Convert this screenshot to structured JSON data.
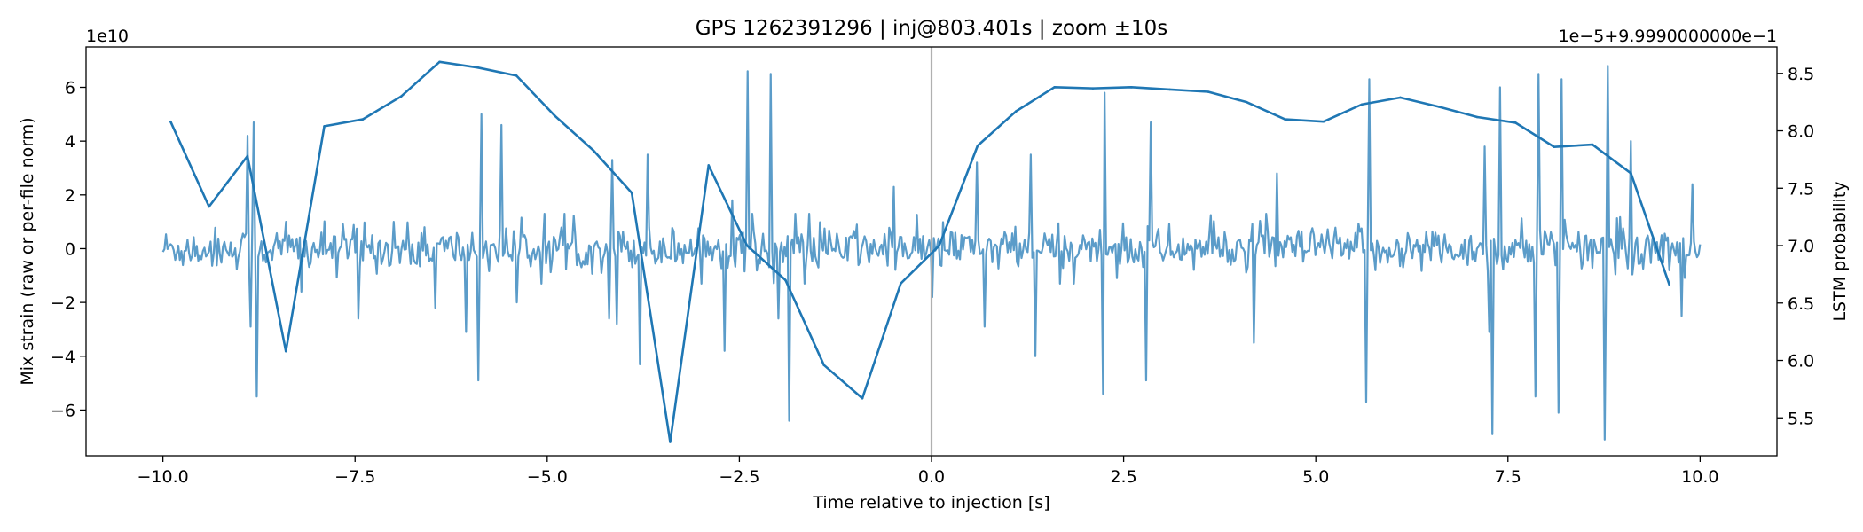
{
  "chart_data": {
    "type": "line",
    "title": "GPS 1262391296 | inj@803.401s | zoom ±10s",
    "xlabel": "Time relative to injection [s]",
    "ylabel_left": "Mix strain (raw or per-file norm)",
    "ylabel_right": "LSTM probability",
    "left_offset_text": "1e10",
    "right_offset_text": "1e−5+9.9990000000e−1",
    "xlim": [
      -11.0,
      11.0
    ],
    "ylim_left": [
      -7.7,
      7.5
    ],
    "ylim_right": [
      5.17,
      8.73
    ],
    "x_ticks": [
      -10.0,
      -7.5,
      -5.0,
      -2.5,
      0.0,
      2.5,
      5.0,
      7.5,
      10.0
    ],
    "x_tick_labels": [
      "−10.0",
      "−7.5",
      "−5.0",
      "−2.5",
      "0.0",
      "2.5",
      "5.0",
      "7.5",
      "10.0"
    ],
    "y_left_ticks": [
      -6,
      -4,
      -2,
      0,
      2,
      4,
      6
    ],
    "y_left_tick_labels": [
      "−6",
      "−4",
      "−2",
      "0",
      "2",
      "4",
      "6"
    ],
    "y_right_ticks": [
      5.5,
      6.0,
      6.5,
      7.0,
      7.5,
      8.0,
      8.5
    ],
    "y_right_tick_labels": [
      "5.5",
      "6.0",
      "6.5",
      "7.0",
      "7.5",
      "8.0",
      "8.5"
    ],
    "injection_marker_x": 0.0,
    "grid": false,
    "colors": {
      "strain": "#5b9cc9",
      "probability": "#1f77b4",
      "injection_line": "#b0b0b0"
    },
    "series": [
      {
        "axis": "right",
        "x": [
          -9.9,
          -9.4,
          -8.9,
          -8.4,
          -7.9,
          -7.4,
          -6.9,
          -6.4,
          -5.9,
          -5.4,
          -4.9,
          -4.4,
          -3.9,
          -3.4,
          -2.9,
          -2.4,
          -1.9,
          -1.4,
          -0.9,
          -0.4,
          0.1,
          0.6,
          1.1,
          1.6,
          2.1,
          2.6,
          3.1,
          3.6,
          4.1,
          4.6,
          5.1,
          5.6,
          6.1,
          6.6,
          7.1,
          7.6,
          8.1,
          8.6,
          9.1,
          9.6
        ],
        "y": [
          8.08,
          7.34,
          7.78,
          6.08,
          8.04,
          8.1,
          8.3,
          8.6,
          8.55,
          8.48,
          8.13,
          7.83,
          7.46,
          5.29,
          7.7,
          7.0,
          6.7,
          5.96,
          5.67,
          6.67,
          7.0,
          7.87,
          8.17,
          8.38,
          8.37,
          8.38,
          8.36,
          8.34,
          8.25,
          8.1,
          8.08,
          8.23,
          8.29,
          8.21,
          8.12,
          8.07,
          7.86,
          7.88,
          7.63,
          6.66
        ]
      },
      {
        "axis": "left",
        "x_start": -10.0,
        "x_end": 10.0,
        "n_points": 1000,
        "base_amplitude": 0.7,
        "spikes": [
          {
            "x": -8.9,
            "y": 4.2
          },
          {
            "x": -8.86,
            "y": -2.9
          },
          {
            "x": -8.82,
            "y": 4.7
          },
          {
            "x": -8.78,
            "y": -5.5
          },
          {
            "x": -8.4,
            "y": 1.0
          },
          {
            "x": -8.2,
            "y": -1.6
          },
          {
            "x": -7.45,
            "y": -2.6
          },
          {
            "x": -7.0,
            "y": 1.0
          },
          {
            "x": -6.45,
            "y": -2.2
          },
          {
            "x": -6.05,
            "y": -3.1
          },
          {
            "x": -5.9,
            "y": -4.9
          },
          {
            "x": -5.85,
            "y": 5.0
          },
          {
            "x": -5.6,
            "y": 4.6
          },
          {
            "x": -5.4,
            "y": -2.0
          },
          {
            "x": -4.2,
            "y": -2.6
          },
          {
            "x": -4.15,
            "y": 3.3
          },
          {
            "x": -4.1,
            "y": -2.8
          },
          {
            "x": -3.8,
            "y": -4.3
          },
          {
            "x": -3.7,
            "y": 3.5
          },
          {
            "x": -2.7,
            "y": -3.8
          },
          {
            "x": -2.6,
            "y": 1.8
          },
          {
            "x": -2.4,
            "y": 6.6
          },
          {
            "x": -2.1,
            "y": 6.5
          },
          {
            "x": -2.0,
            "y": -2.6
          },
          {
            "x": -1.85,
            "y": -6.4
          },
          {
            "x": -1.6,
            "y": 1.3
          },
          {
            "x": -0.5,
            "y": 2.3
          },
          {
            "x": 0.0,
            "y": 2.9
          },
          {
            "x": 0.02,
            "y": -1.8
          },
          {
            "x": 0.6,
            "y": 3.2
          },
          {
            "x": 0.7,
            "y": -2.9
          },
          {
            "x": 1.3,
            "y": 3.5
          },
          {
            "x": 1.35,
            "y": -4.0
          },
          {
            "x": 2.25,
            "y": 5.8
          },
          {
            "x": 2.23,
            "y": -5.4
          },
          {
            "x": 2.8,
            "y": -4.9
          },
          {
            "x": 2.85,
            "y": 4.7
          },
          {
            "x": 4.2,
            "y": -3.5
          },
          {
            "x": 4.5,
            "y": 2.8
          },
          {
            "x": 5.65,
            "y": -5.7
          },
          {
            "x": 5.7,
            "y": 6.3
          },
          {
            "x": 7.2,
            "y": 3.8
          },
          {
            "x": 7.25,
            "y": -3.1
          },
          {
            "x": 7.3,
            "y": -6.9
          },
          {
            "x": 7.4,
            "y": 6.0
          },
          {
            "x": 7.85,
            "y": -5.5
          },
          {
            "x": 7.9,
            "y": 6.5
          },
          {
            "x": 8.15,
            "y": -6.1
          },
          {
            "x": 8.2,
            "y": 6.3
          },
          {
            "x": 8.75,
            "y": -7.1
          },
          {
            "x": 8.8,
            "y": 6.8
          },
          {
            "x": 9.1,
            "y": 4.0
          },
          {
            "x": 9.75,
            "y": -2.5
          },
          {
            "x": 9.9,
            "y": 2.4
          }
        ]
      }
    ]
  }
}
